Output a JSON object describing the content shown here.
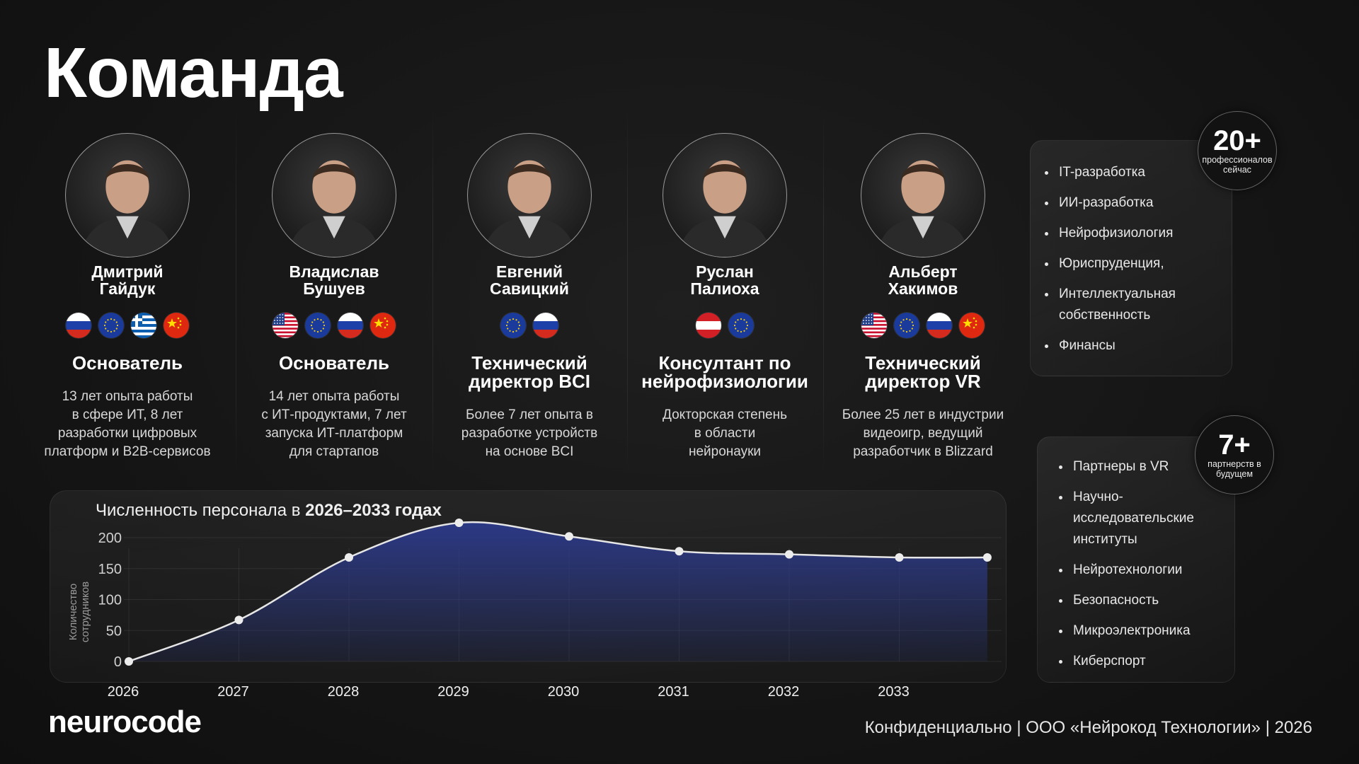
{
  "page": {
    "title": "Команда",
    "logo": "neurocode",
    "footer": "Конфиденциально | ООО «Нейрокод Технологии» | 2026"
  },
  "team": [
    {
      "name": "Дмитрий\nГайдук",
      "flags": [
        "ru",
        "eu",
        "gr",
        "cn"
      ],
      "role": "Основатель",
      "desc": "13 лет опыта работы\nв сфере ИТ, 8 лет\nразработки цифровых\nплатформ и B2B-сервисов"
    },
    {
      "name": "Владислав\nБушуев",
      "flags": [
        "us",
        "eu",
        "ru",
        "cn"
      ],
      "role": "Основатель",
      "desc": "14 лет опыта работы\nс ИТ-продуктами, 7 лет\nзапуска ИТ-платформ\nдля стартапов"
    },
    {
      "name": "Евгений\nСавицкий",
      "flags": [
        "eu",
        "ru"
      ],
      "role": "Технический\nдиректор BCI",
      "desc": "Более 7 лет опыта в\nразработке устройств\nна основе BCI"
    },
    {
      "name": "Руслан\nПалиоха",
      "flags": [
        "at",
        "eu"
      ],
      "role": "Консултант по\nнейрофизиологии",
      "desc": "Докторская степень\nв области\nнейронауки"
    },
    {
      "name": "Альберт\nХакимов",
      "flags": [
        "us",
        "eu",
        "ru",
        "cn"
      ],
      "role": "Технический\nдиректор VR",
      "desc": "Более 25 лет в индустрии\nвидеоигр, ведущий\nразработчик в Blizzard"
    }
  ],
  "professionals": {
    "count": "20+",
    "label": "профессионалов\nсейчас",
    "items": [
      "IT-разработка",
      "ИИ-разработка",
      "Нейрофизиология",
      "Юриспруденция,",
      "Интеллектуальная\nсобственность",
      "Финансы"
    ]
  },
  "partners": {
    "count": "7+",
    "label": "партнерств в\nбудущем",
    "items": [
      "Партнеры в VR",
      "Научно-\nисследовательские\nинституты",
      "Нейротехнологии",
      "Безопасность",
      "Микроэлектроника",
      "Киберспорт"
    ]
  },
  "chart_title_prefix": "Численность персонала в ",
  "chart_title_bold": "2026–2033 годах",
  "chart_data": {
    "type": "area",
    "title": "Численность персонала в 2026–2033 годах",
    "ylabel": "Количество\nсотрудников",
    "x_tick_labels": [
      "2026",
      "2027",
      "2028",
      "2029",
      "2030",
      "2031",
      "2032",
      "2033"
    ],
    "y_ticks": [
      0,
      50,
      100,
      150,
      200
    ],
    "ylim": [
      0,
      235
    ],
    "points": [
      {
        "x": 2026,
        "y": 0
      },
      {
        "x": 2027,
        "y": 67
      },
      {
        "x": 2028,
        "y": 168
      },
      {
        "x": 2029,
        "y": 224
      },
      {
        "x": 2030,
        "y": 202
      },
      {
        "x": 2031,
        "y": 178
      },
      {
        "x": 2032,
        "y": 173
      },
      {
        "x": 2033,
        "y": 168
      },
      {
        "x": 2033.8,
        "y": 168
      }
    ],
    "grid": true,
    "fill_color": "#2c3a8a",
    "line_color": "#e6e6e6"
  }
}
